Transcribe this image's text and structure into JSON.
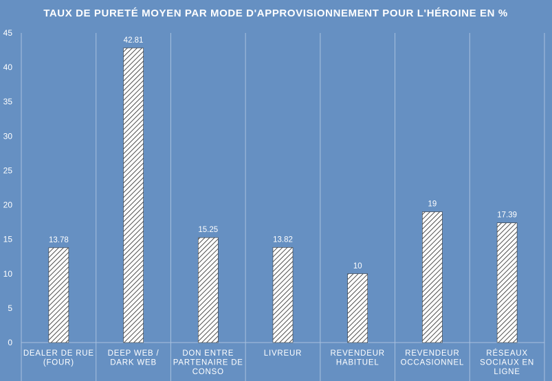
{
  "chart_data": {
    "type": "bar",
    "title": "TAUX DE PURETÉ MOYEN PAR MODE D'APPROVISIONNEMENT POUR L'HÉROINE EN %",
    "xlabel": "",
    "ylabel": "",
    "ylim": [
      0,
      45
    ],
    "yticks": [
      0,
      5,
      10,
      15,
      20,
      25,
      30,
      35,
      40,
      45
    ],
    "grid": "vertical category separators",
    "legend": "none",
    "categories": [
      [
        "DEALER DE RUE",
        "(FOUR)"
      ],
      [
        "DEEP WEB /",
        "DARK WEB"
      ],
      [
        "DON ENTRE",
        "PARTENAIRE DE",
        "CONSO"
      ],
      [
        "LIVREUR"
      ],
      [
        "REVENDEUR",
        "HABITUEL"
      ],
      [
        "REVENDEUR",
        "OCCASIONNEL"
      ],
      [
        "RÉSEAUX",
        "SOCIAUX EN",
        "LIGNE"
      ]
    ],
    "values": [
      13.78,
      42.81,
      15.25,
      13.82,
      10,
      19,
      17.39
    ],
    "data_labels": [
      "13.78",
      "42.81",
      "15.25",
      "13.82",
      "10",
      "19",
      "17.39"
    ],
    "colors": {
      "background": "#6690c2",
      "bar_fill": "#ffffff",
      "bar_hatch": "#3a3a3a",
      "text": "#ffffff",
      "gridline": "#a9c1de"
    }
  }
}
